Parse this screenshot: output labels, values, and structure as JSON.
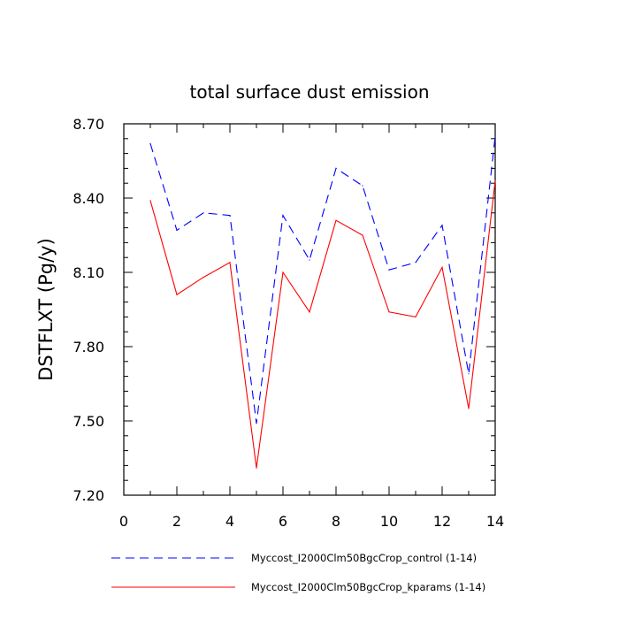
{
  "chart_data": {
    "type": "line",
    "title": "total surface dust emission",
    "ylabel": "DSTFLXT  (Pg/y)",
    "xlabel": "",
    "xlim": [
      0,
      14
    ],
    "ylim": [
      7.2,
      8.7
    ],
    "x_ticks": [
      "0",
      "2",
      "4",
      "6",
      "8",
      "10",
      "12",
      "14"
    ],
    "y_ticks": [
      "7.20",
      "7.50",
      "7.80",
      "8.10",
      "8.40",
      "8.70"
    ],
    "x": [
      1,
      2,
      3,
      4,
      5,
      6,
      7,
      8,
      9,
      10,
      11,
      12,
      13,
      14
    ],
    "series": [
      {
        "name": "Myccost_I2000Clm50BgcCrop_control (1-14)",
        "color": "#0000ff",
        "dash": "dashed",
        "values": [
          8.62,
          8.27,
          8.34,
          8.33,
          7.49,
          8.33,
          8.15,
          8.52,
          8.45,
          8.11,
          8.14,
          8.29,
          7.69,
          8.65
        ]
      },
      {
        "name": "Myccost_I2000Clm50BgcCrop_kparams (1-14)",
        "color": "#ff0000",
        "dash": "solid",
        "values": [
          8.39,
          8.01,
          8.08,
          8.14,
          7.31,
          8.1,
          7.94,
          8.31,
          8.25,
          7.94,
          7.92,
          8.12,
          7.55,
          8.47
        ]
      }
    ],
    "legend_position": "bottom",
    "grid": false
  }
}
